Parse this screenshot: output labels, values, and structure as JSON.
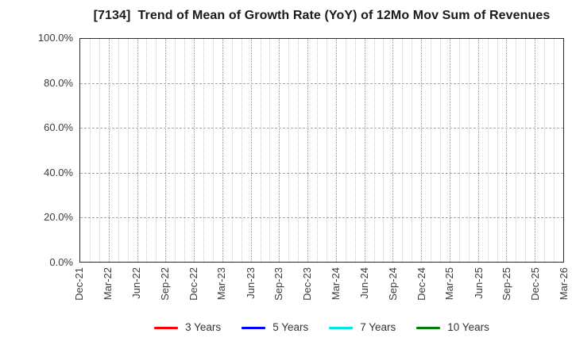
{
  "chart_data": {
    "type": "line",
    "title": "[7134]  Trend of Mean of Growth Rate (YoY) of 12Mo Mov Sum of Revenues",
    "x_tick_labels": [
      "Dec-21",
      "Mar-22",
      "Jun-22",
      "Sep-22",
      "Dec-22",
      "Mar-23",
      "Jun-23",
      "Sep-23",
      "Dec-23",
      "Mar-24",
      "Jun-24",
      "Sep-24",
      "Dec-24",
      "Mar-25",
      "Jun-25",
      "Sep-25",
      "Dec-25",
      "Mar-26"
    ],
    "x_minor_divisions_per_major": 3,
    "y_tick_labels": [
      "0.0%",
      "20.0%",
      "40.0%",
      "60.0%",
      "80.0%",
      "100.0%"
    ],
    "y_tick_values": [
      0,
      20,
      40,
      60,
      80,
      100
    ],
    "ylim": [
      0,
      100
    ],
    "grid": true,
    "legend_position": "bottom-center",
    "series": [
      {
        "name": "3 Years",
        "color": "#ff0000",
        "values": []
      },
      {
        "name": "5 Years",
        "color": "#0000ff",
        "values": []
      },
      {
        "name": "7 Years",
        "color": "#00e6e6",
        "values": []
      },
      {
        "name": "10 Years",
        "color": "#008000",
        "values": []
      }
    ],
    "colors": {
      "axis_border": "#2b2b2b",
      "title_text": "#1a1a1a",
      "tick_label": "#3c3c3c",
      "grid_major": "#999999",
      "grid_minor": "#cccccc",
      "background": "#ffffff"
    }
  }
}
